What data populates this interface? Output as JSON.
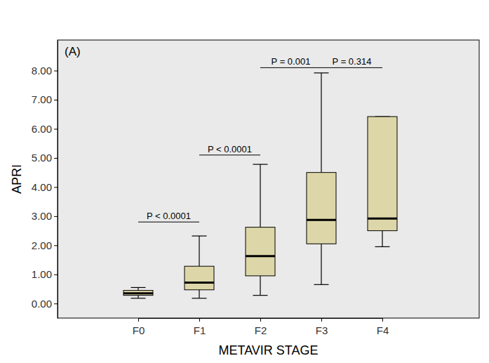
{
  "chart_data": {
    "type": "box",
    "title": "(A)",
    "x_label": "METAVIR STAGE",
    "y_label": "APRI",
    "categories": [
      "F0",
      "F1",
      "F2",
      "F3",
      "F4"
    ],
    "min": [
      0.18,
      0.18,
      0.28,
      0.65,
      1.95
    ],
    "q1": [
      0.28,
      0.47,
      0.95,
      2.05,
      2.5
    ],
    "median": [
      0.35,
      0.72,
      1.63,
      2.87,
      2.92
    ],
    "q3": [
      0.45,
      1.28,
      2.62,
      4.5,
      6.42
    ],
    "max": [
      0.55,
      2.32,
      4.78,
      7.92,
      6.42
    ],
    "color": "#ddd6a8",
    "ylim": [
      -0.5,
      9.05
    ],
    "yticks": [
      {
        "value": 0,
        "label": "0.00"
      },
      {
        "value": 1,
        "label": "1.00"
      },
      {
        "value": 2,
        "label": "2.00"
      },
      {
        "value": 3,
        "label": "3.00"
      },
      {
        "value": 4,
        "label": "4.00"
      },
      {
        "value": 5,
        "label": "5.00"
      },
      {
        "value": 6,
        "label": "6.00"
      },
      {
        "value": 7,
        "label": "7.00"
      },
      {
        "value": 8,
        "label": "8.00"
      }
    ],
    "annotations": [
      {
        "text": "P < 0.0001",
        "from": "F0",
        "to": "F1",
        "y": 2.8
      },
      {
        "text": "P < 0.0001",
        "from": "F1",
        "to": "F2",
        "y": 5.1
      },
      {
        "text": "P = 0.001",
        "from": "F2",
        "to": "F3",
        "y": 8.1
      },
      {
        "text": "P = 0.314",
        "from": "F3",
        "to": "F4",
        "y": 8.1
      }
    ]
  }
}
